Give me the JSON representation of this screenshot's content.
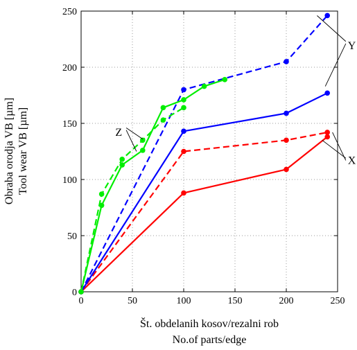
{
  "chart_data": {
    "type": "line",
    "xlabel": [
      "Št. obdelanih kosov/rezalni rob",
      "No.of parts/edge"
    ],
    "ylabel": [
      "Obraba orodja VB [µm]",
      "Tool wear VB [µm]"
    ],
    "xlim": [
      0,
      250
    ],
    "ylim": [
      0,
      250
    ],
    "xticks": [
      0,
      50,
      100,
      150,
      200,
      250
    ],
    "yticks": [
      0,
      50,
      100,
      150,
      200,
      250
    ],
    "xtick_labels": [
      "0",
      "50",
      "100",
      "150",
      "200",
      "250"
    ],
    "ytick_labels": [
      "0",
      "50",
      "100",
      "150",
      "200",
      "250"
    ],
    "grid": true,
    "series": [
      {
        "color": "#ff0000",
        "dash": "solid",
        "x": [
          0,
          100,
          200,
          240
        ],
        "y": [
          0,
          88,
          109,
          138
        ]
      },
      {
        "color": "#ff0000",
        "dash": "dashed",
        "x": [
          0,
          100,
          200,
          240
        ],
        "y": [
          0,
          125,
          135,
          142
        ]
      },
      {
        "color": "#0000ff",
        "dash": "solid",
        "x": [
          0,
          100,
          200,
          240
        ],
        "y": [
          0,
          143,
          159,
          177
        ]
      },
      {
        "color": "#0000ff",
        "dash": "dashed",
        "x": [
          0,
          100,
          200,
          240
        ],
        "y": [
          0,
          180,
          205,
          246
        ]
      },
      {
        "color": "#00ee00",
        "dash": "solid",
        "x": [
          0,
          20,
          40,
          60,
          80,
          100,
          120,
          140
        ],
        "y": [
          0,
          77,
          113,
          126,
          164,
          171,
          183,
          189
        ]
      },
      {
        "color": "#00ee00",
        "dash": "dashed",
        "x": [
          0,
          20,
          40,
          60,
          80,
          100
        ],
        "y": [
          0,
          87,
          118,
          135,
          153,
          164
        ]
      }
    ],
    "annotations": [
      {
        "label": "Z",
        "x": 40,
        "y": 142
      },
      {
        "label": "Y",
        "x": 260,
        "y": 219
      },
      {
        "label": "X",
        "x": 260,
        "y": 117
      }
    ]
  }
}
